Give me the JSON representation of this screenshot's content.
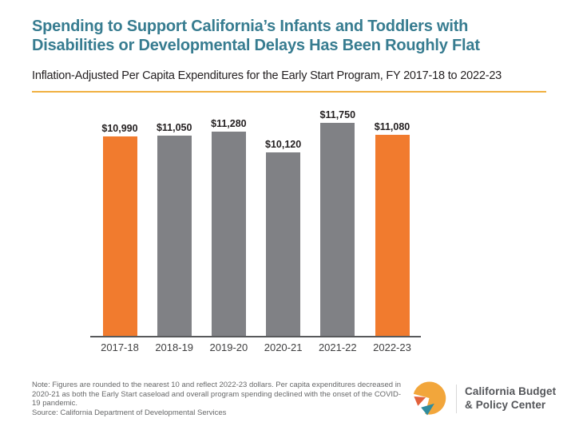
{
  "header": {
    "title_line1": "Spending to Support California’s Infants and Toddlers with",
    "title_line2": "Disabilities or Developmental Delays Has Been Roughly Flat",
    "subtitle": "Inflation-Adjusted Per Capita Expenditures for the Early Start Program, FY 2017-18 to 2022-23"
  },
  "chart_data": {
    "type": "bar",
    "title": "Spending to Support California’s Infants and Toddlers with Disabilities or Developmental Delays Has Been Roughly Flat",
    "subtitle": "Inflation-Adjusted Per Capita Expenditures for the Early Start Program, FY 2017-18 to 2022-23",
    "categories": [
      "2017-18",
      "2018-19",
      "2019-20",
      "2020-21",
      "2021-22",
      "2022-23"
    ],
    "values": [
      10990,
      11050,
      11280,
      10120,
      11750,
      11080
    ],
    "value_labels": [
      "$10,990",
      "$11,050",
      "$11,280",
      "$10,120",
      "$11,750",
      "$11,080"
    ],
    "bar_colors": [
      "#F17B2E",
      "#808185",
      "#808185",
      "#808185",
      "#808185",
      "#F17B2E"
    ],
    "highlight_color": "#F17B2E",
    "default_color": "#808185",
    "xlabel": "",
    "ylabel": "",
    "ylim": [
      0,
      11750
    ],
    "grid": false,
    "legend": "none",
    "data_labels": true,
    "axis_color": "#58595B"
  },
  "footer": {
    "note": "Note: Figures are rounded to the nearest 10 and reflect 2022-23 dollars. Per capita expenditures decreased in 2020-21 as both the Early Start caseload and overall program spending declined with the onset of the COVID-19 pandemic.",
    "source": "Source: California Department of Developmental Services"
  },
  "logo": {
    "name_line1": "California Budget",
    "name_line2": "& Policy Center",
    "mark_colors": {
      "gold": "#F2A63B",
      "orange": "#E2613B",
      "teal": "#2F8C9E"
    }
  },
  "accents": {
    "title_color": "#377C90",
    "rule_color": "#F0B041"
  }
}
